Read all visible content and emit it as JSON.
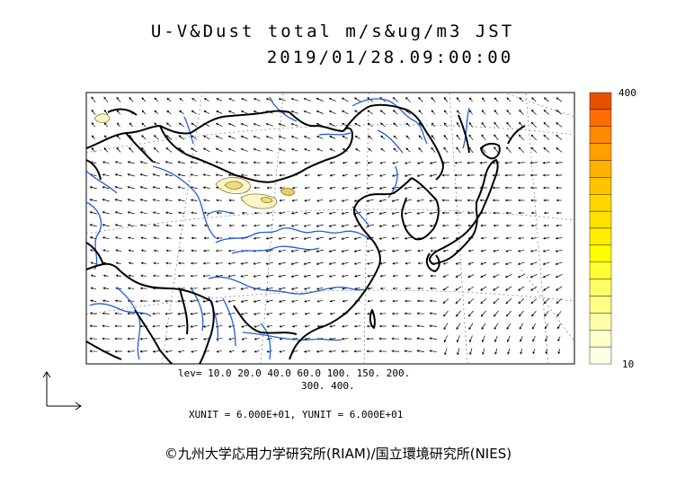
{
  "header": {
    "title_line1": "U-V&Dust total m/s&ug/m3 JST",
    "title_line2": "2019/01/28.09:00:00"
  },
  "colorbar": {
    "max_label": "400",
    "min_label": "10",
    "colors": [
      "#e65100",
      "#ff6d00",
      "#ff8a00",
      "#ffa000",
      "#ffb300",
      "#ffc400",
      "#ffd600",
      "#ffe100",
      "#ffee00",
      "#ffff00",
      "#ffff33",
      "#ffff66",
      "#ffff88",
      "#ffffaa",
      "#ffffcc",
      "#ffffe6"
    ]
  },
  "legend": {
    "lev_line1": "lev= 10.0 20.0 40.0 60.0 100. 150. 200.",
    "lev_line2": "300. 400.",
    "units": "XUNIT = 6.000E+01, YUNIT = 6.000E+01"
  },
  "footer": {
    "copyright": "©九州大学応用力学研究所(RIAM)/国立環境研究所(NIES)"
  },
  "map": {
    "coastline_color": "#000000",
    "river_color": "#1e5fd8",
    "grid_color": "#555555",
    "dust_fill": "#fdf6c8",
    "dust_line": "#8a7a30"
  }
}
